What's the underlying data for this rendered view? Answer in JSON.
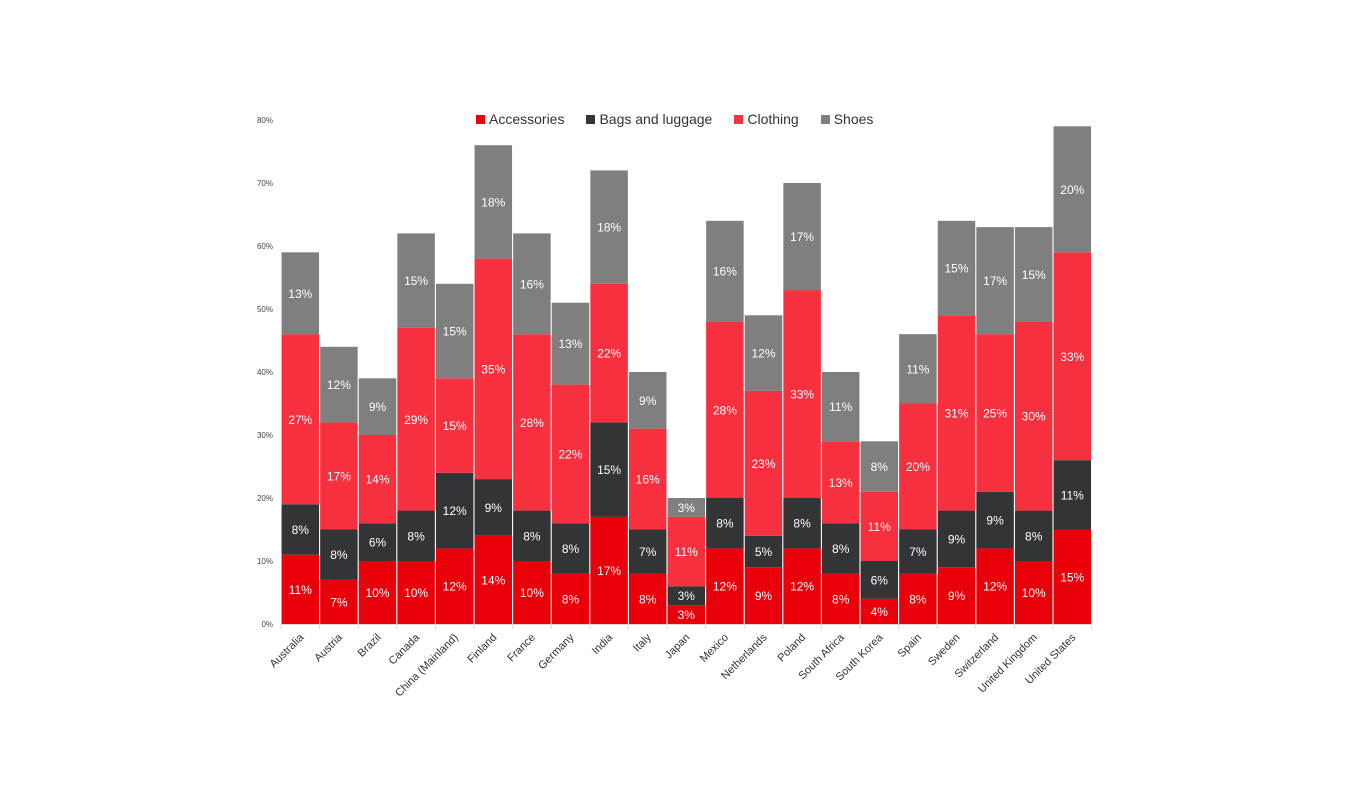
{
  "chart_data": {
    "type": "bar",
    "stacked": true,
    "title": "",
    "xlabel": "",
    "ylabel": "",
    "ylim": [
      0,
      80
    ],
    "yticks": [
      "0%",
      "10%",
      "20%",
      "30%",
      "40%",
      "50%",
      "60%",
      "70%",
      "80%"
    ],
    "grid": false,
    "legend_position": "top",
    "categories": [
      "Australia",
      "Austria",
      "Brazil",
      "Canada",
      "China (Mainland)",
      "Finland",
      "France",
      "Germany",
      "India",
      "Italy",
      "Japan",
      "Mexico",
      "Netherlands",
      "Poland",
      "South Africa",
      "South Korea",
      "Spain",
      "Sweden",
      "Switzerland",
      "United Kingdom",
      "United States"
    ],
    "series": [
      {
        "name": "Accessories",
        "color": "#e8000b",
        "values": [
          11,
          7,
          10,
          10,
          12,
          14,
          10,
          8,
          17,
          8,
          3,
          12,
          9,
          12,
          8,
          4,
          8,
          9,
          12,
          10,
          15
        ]
      },
      {
        "name": "Bags and luggage",
        "color": "#333436",
        "values": [
          8,
          8,
          6,
          8,
          12,
          9,
          8,
          8,
          15,
          7,
          3,
          8,
          5,
          8,
          8,
          6,
          7,
          9,
          9,
          8,
          11
        ]
      },
      {
        "name": "Clothing",
        "color": "#f7303f",
        "values": [
          27,
          17,
          14,
          29,
          15,
          35,
          28,
          22,
          22,
          16,
          11,
          28,
          23,
          33,
          13,
          11,
          20,
          31,
          25,
          30,
          33
        ]
      },
      {
        "name": "Shoes",
        "color": "#7f7f7f",
        "values": [
          13,
          12,
          9,
          15,
          15,
          18,
          16,
          13,
          18,
          9,
          3,
          16,
          12,
          17,
          11,
          8,
          11,
          15,
          17,
          15,
          20
        ]
      }
    ],
    "data_label_suffix": "%"
  }
}
